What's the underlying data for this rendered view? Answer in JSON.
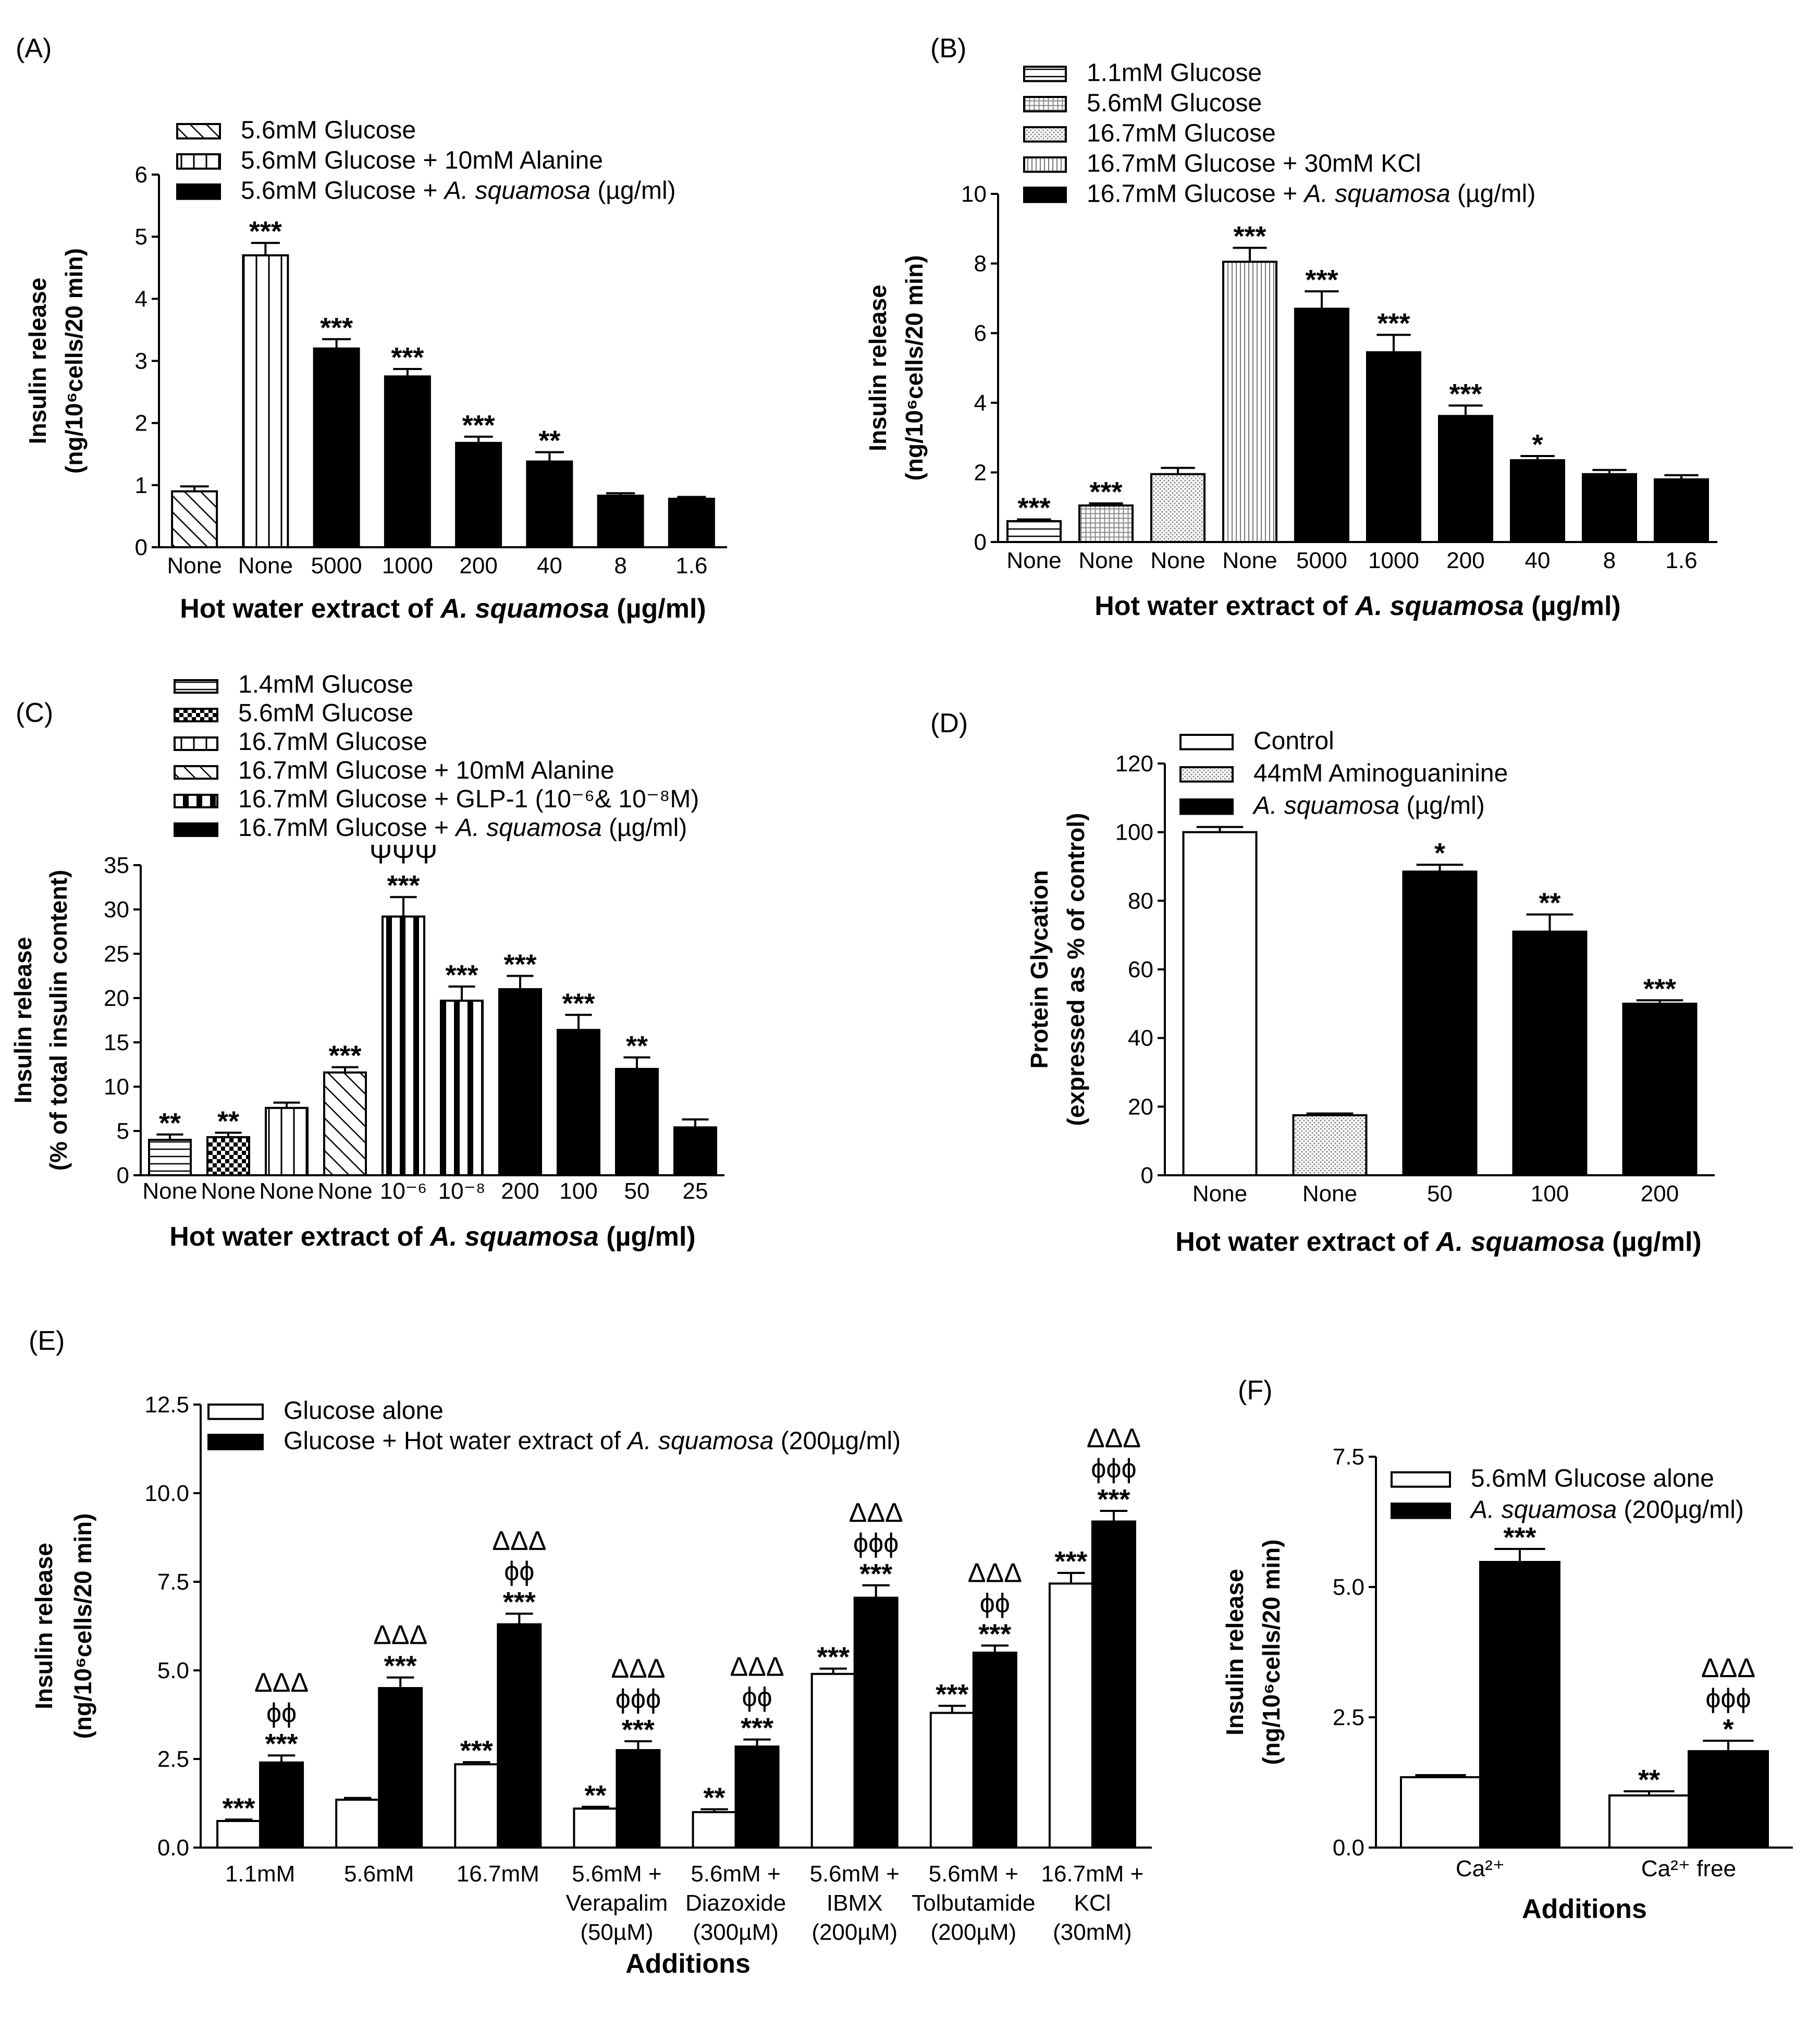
{
  "chart_data": [
    {
      "id": "A",
      "type": "bar",
      "panel_label": "(A)",
      "ylabel_line1": "Insulin release",
      "ylabel_line2": "(ng/10⁶cells/20 min)",
      "xlabel": "Hot water extract of A. squamosa (µg/ml)",
      "ylim": [
        0,
        6
      ],
      "yticks": [
        "0",
        "1",
        "2",
        "3",
        "4",
        "5",
        "6"
      ],
      "categories": [
        "None",
        "None",
        "5000",
        "1000",
        "200",
        "40",
        "8",
        "1.6"
      ],
      "values": [
        0.9,
        4.7,
        3.2,
        2.75,
        1.68,
        1.38,
        0.83,
        0.78
      ],
      "errors": [
        0.08,
        0.2,
        0.15,
        0.12,
        0.1,
        0.15,
        0.04,
        0.03
      ],
      "fills": [
        "diag",
        "vlines",
        "black",
        "black",
        "black",
        "black",
        "black",
        "black"
      ],
      "sig": [
        "",
        "***",
        "***",
        "***",
        "***",
        "**",
        "",
        ""
      ],
      "sym": [
        "",
        "",
        "",
        "",
        "",
        "",
        "",
        ""
      ],
      "legend": [
        {
          "label": "5.6mM Glucose",
          "fill": "diag"
        },
        {
          "label": "5.6mM Glucose + 10mM Alanine",
          "fill": "vlines"
        },
        {
          "label": "5.6mM Glucose + A. squamosa (µg/ml)",
          "fill": "black"
        }
      ]
    },
    {
      "id": "B",
      "type": "bar",
      "panel_label": "(B)",
      "ylabel_line1": "Insulin release",
      "ylabel_line2": "(ng/10⁶cells/20 min)",
      "xlabel": "Hot water extract of A. squamosa (µg/ml)",
      "ylim": [
        0,
        10
      ],
      "yticks": [
        "0",
        "2",
        "4",
        "6",
        "8",
        "10"
      ],
      "categories": [
        "None",
        "None",
        "None",
        "None",
        "5000",
        "1000",
        "200",
        "40",
        "8",
        "1.6"
      ],
      "values": [
        0.6,
        1.05,
        1.95,
        8.05,
        6.7,
        5.45,
        3.62,
        2.35,
        1.95,
        1.8
      ],
      "errors": [
        0.05,
        0.06,
        0.18,
        0.4,
        0.5,
        0.5,
        0.3,
        0.12,
        0.12,
        0.12
      ],
      "fills": [
        "hlines",
        "grid",
        "dots",
        "vfine",
        "black",
        "black",
        "black",
        "black",
        "black",
        "black"
      ],
      "sig": [
        "***",
        "***",
        "",
        "***",
        "***",
        "***",
        "***",
        "*",
        "",
        ""
      ],
      "sym": [
        "",
        "",
        "",
        "",
        "",
        "",
        "",
        "",
        "",
        ""
      ],
      "legend": [
        {
          "label": "1.1mM Glucose",
          "fill": "hlines"
        },
        {
          "label": "5.6mM Glucose",
          "fill": "grid"
        },
        {
          "label": "16.7mM Glucose",
          "fill": "dots"
        },
        {
          "label": "16.7mM Glucose + 30mM KCl",
          "fill": "vfine"
        },
        {
          "label": "16.7mM Glucose + A. squamosa (µg/ml)",
          "fill": "black"
        }
      ]
    },
    {
      "id": "C",
      "type": "bar",
      "panel_label": "(C)",
      "ylabel_line1": "Insulin release",
      "ylabel_line2": "(% of total  insulin content)",
      "xlabel": "Hot water extract of A. squamosa (µg/ml)",
      "ylim": [
        0,
        35
      ],
      "yticks": [
        "0",
        "5",
        "10",
        "15",
        "20",
        "25",
        "30",
        "35"
      ],
      "categories": [
        "None",
        "None",
        "None",
        "None",
        "10⁻⁶",
        "10⁻⁸",
        "200",
        "100",
        "50",
        "25"
      ],
      "values": [
        4.0,
        4.3,
        7.6,
        11.6,
        29.2,
        19.7,
        21.0,
        16.4,
        12.0,
        5.4
      ],
      "errors": [
        0.6,
        0.5,
        0.6,
        0.6,
        2.2,
        1.6,
        1.5,
        1.7,
        1.3,
        0.9
      ],
      "fills": [
        "hlines",
        "check",
        "vlines",
        "diag",
        "vthick",
        "vthick",
        "black",
        "black",
        "black",
        "black"
      ],
      "sig": [
        "**",
        "**",
        "",
        "***",
        "***",
        "***",
        "***",
        "***",
        "**",
        ""
      ],
      "sym": [
        "",
        "",
        "",
        "",
        "ΨΨΨ",
        "",
        "",
        "",
        "",
        ""
      ],
      "legend": [
        {
          "label": "1.4mM Glucose",
          "fill": "hlines"
        },
        {
          "label": "5.6mM Glucose",
          "fill": "check"
        },
        {
          "label": "16.7mM Glucose",
          "fill": "vlines"
        },
        {
          "label": "16.7mM Glucose + 10mM Alanine",
          "fill": "diag"
        },
        {
          "label": "16.7mM Glucose + GLP-1 (10⁻⁶& 10⁻⁸M)",
          "fill": "vthick"
        },
        {
          "label": "16.7mM Glucose + A. squamosa (µg/ml)",
          "fill": "black"
        }
      ]
    },
    {
      "id": "D",
      "type": "bar",
      "panel_label": "(D)",
      "ylabel_line1": "Protein Glycation",
      "ylabel_line2": "(expressed as % of control)",
      "xlabel": "Hot water extract of A. squamosa (µg/ml)",
      "ylim": [
        0,
        120
      ],
      "yticks": [
        "0",
        "20",
        "40",
        "60",
        "80",
        "100",
        "120"
      ],
      "categories": [
        "None",
        "None",
        "50",
        "100",
        "200"
      ],
      "values": [
        100,
        17.5,
        88.5,
        71,
        50
      ],
      "errors": [
        1.5,
        0.5,
        2,
        5,
        1
      ],
      "fills": [
        "white",
        "dots",
        "black",
        "black",
        "black"
      ],
      "sig": [
        "",
        "",
        "*",
        "**",
        "***"
      ],
      "sym": [
        "",
        "",
        "",
        "",
        ""
      ],
      "legend": [
        {
          "label": "Control",
          "fill": "white"
        },
        {
          "label": "44mM Aminoguaninine",
          "fill": "dots"
        },
        {
          "label": "A. squamosa (µg/ml)",
          "fill": "black"
        }
      ]
    },
    {
      "id": "E",
      "type": "grouped-bar",
      "panel_label": "(E)",
      "ylabel_line1": "Insulin release",
      "ylabel_line2": "(ng/10⁶cells/20 min)",
      "xlabel": "Additions",
      "ylim": [
        0,
        12.5
      ],
      "yticks": [
        "0.0",
        "2.5",
        "5.0",
        "7.5",
        "10.0",
        "12.5"
      ],
      "categories": [
        [
          "1.1mM"
        ],
        [
          "5.6mM"
        ],
        [
          "16.7mM"
        ],
        [
          "5.6mM +",
          "Verapalim",
          "(50µM)"
        ],
        [
          "5.6mM +",
          "Diazoxide",
          "(300µM)"
        ],
        [
          "5.6mM +",
          "IBMX",
          "(200µM)"
        ],
        [
          "5.6mM +",
          "Tolbutamide",
          "(200µM)"
        ],
        [
          "16.7mM +",
          "KCl",
          "(30mM)"
        ]
      ],
      "series": [
        {
          "name": "Glucose alone",
          "fill": "white",
          "values": [
            0.75,
            1.35,
            2.35,
            1.1,
            1.0,
            4.9,
            3.8,
            7.45
          ],
          "errors": [
            0.04,
            0.05,
            0.06,
            0.05,
            0.08,
            0.15,
            0.2,
            0.3
          ],
          "sig": [
            "***",
            "",
            "***",
            "**",
            "**",
            "***",
            "***",
            "***"
          ],
          "sym": [
            [],
            [],
            [],
            [],
            [],
            [],
            [],
            []
          ]
        },
        {
          "name": "Glucose + Hot water extract of A. squamosa (200µg/ml)",
          "fill": "black",
          "values": [
            2.4,
            4.5,
            6.3,
            2.75,
            2.85,
            7.05,
            5.5,
            9.2
          ],
          "errors": [
            0.2,
            0.3,
            0.3,
            0.25,
            0.2,
            0.35,
            0.2,
            0.3
          ],
          "sig": [
            "***",
            "***",
            "***",
            "***",
            "***",
            "***",
            "***",
            "***"
          ],
          "sym": [
            [
              "ΔΔΔ",
              "ϕϕ"
            ],
            [
              "ΔΔΔ"
            ],
            [
              "ΔΔΔ",
              "ϕϕ"
            ],
            [
              "ΔΔΔ",
              "ϕϕϕ"
            ],
            [
              "ΔΔΔ",
              "ϕϕ"
            ],
            [
              "ΔΔΔ",
              "ϕϕϕ"
            ],
            [
              "ΔΔΔ",
              "ϕϕ"
            ],
            [
              "ΔΔΔ",
              "ϕϕϕ"
            ]
          ]
        }
      ]
    },
    {
      "id": "F",
      "type": "grouped-bar",
      "panel_label": "(F)",
      "ylabel_line1": "Insulin release",
      "ylabel_line2": "(ng/10⁶cells/20 min)",
      "xlabel": "Additions",
      "ylim": [
        0,
        7.5
      ],
      "yticks": [
        "0.0",
        "2.5",
        "5.0",
        "7.5"
      ],
      "categories": [
        [
          "Ca²⁺"
        ],
        [
          "Ca²⁺ free"
        ]
      ],
      "series": [
        {
          "name": "5.6mM Glucose alone",
          "fill": "white",
          "values": [
            1.35,
            1.0
          ],
          "errors": [
            0.04,
            0.08
          ],
          "sig": [
            "",
            "**"
          ],
          "sym": [
            [],
            []
          ]
        },
        {
          "name": "A. squamosa (200µg/ml)",
          "fill": "black",
          "values": [
            5.48,
            1.85
          ],
          "errors": [
            0.25,
            0.2
          ],
          "sig": [
            "***",
            "*"
          ],
          "sym": [
            [],
            [
              "ΔΔΔ",
              "ϕϕϕ"
            ]
          ]
        }
      ]
    }
  ]
}
